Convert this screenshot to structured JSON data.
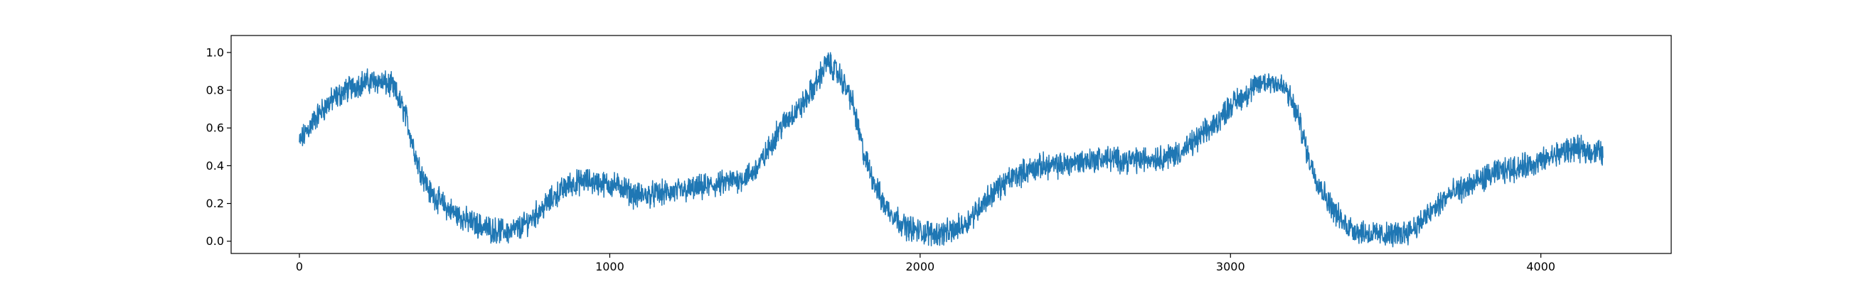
{
  "chart_data": {
    "type": "line",
    "title": "",
    "xlabel": "",
    "ylabel": "",
    "xlim": [
      -220,
      4420
    ],
    "ylim": [
      -0.065,
      1.09
    ],
    "x_ticks": [
      0,
      1000,
      2000,
      3000,
      4000
    ],
    "x_tick_labels": [
      "0",
      "1000",
      "2000",
      "3000",
      "4000"
    ],
    "y_ticks": [
      0.0,
      0.2,
      0.4,
      0.6,
      0.8,
      1.0
    ],
    "y_tick_labels": [
      "0.0",
      "0.2",
      "0.4",
      "0.6",
      "0.8",
      "1.0"
    ],
    "grid": false,
    "legend": "none",
    "line_color": "#1f77b4",
    "series": [
      {
        "x": [
          0,
          30,
          60,
          100,
          150,
          200,
          250,
          300,
          340,
          380,
          420,
          480,
          550,
          620,
          680,
          720,
          780,
          830,
          870,
          920,
          960,
          1000,
          1040,
          1080,
          1150,
          1250,
          1350,
          1420,
          1460,
          1500,
          1540,
          1580,
          1620,
          1660,
          1700,
          1740,
          1780,
          1820,
          1880,
          1950,
          2000,
          2050,
          2100,
          2150,
          2200,
          2250,
          2300,
          2350,
          2400,
          2450,
          2500,
          2550,
          2600,
          2650,
          2700,
          2750,
          2800,
          2850,
          2900,
          2950,
          3000,
          3050,
          3100,
          3140,
          3180,
          3220,
          3250,
          3280,
          3320,
          3360,
          3400,
          3450,
          3500,
          3550,
          3600,
          3650,
          3700,
          3750,
          3800,
          3850,
          3900,
          3950,
          4000,
          4050,
          4100,
          4150,
          4200
        ],
        "y": [
          0.52,
          0.6,
          0.67,
          0.74,
          0.8,
          0.84,
          0.85,
          0.82,
          0.68,
          0.42,
          0.26,
          0.17,
          0.1,
          0.06,
          0.05,
          0.08,
          0.17,
          0.25,
          0.3,
          0.32,
          0.31,
          0.3,
          0.29,
          0.24,
          0.25,
          0.27,
          0.3,
          0.33,
          0.36,
          0.45,
          0.58,
          0.66,
          0.72,
          0.82,
          0.95,
          0.88,
          0.75,
          0.45,
          0.2,
          0.08,
          0.05,
          0.04,
          0.05,
          0.1,
          0.2,
          0.28,
          0.34,
          0.38,
          0.4,
          0.4,
          0.42,
          0.43,
          0.44,
          0.43,
          0.43,
          0.44,
          0.45,
          0.48,
          0.55,
          0.62,
          0.72,
          0.78,
          0.84,
          0.85,
          0.8,
          0.65,
          0.45,
          0.32,
          0.2,
          0.1,
          0.06,
          0.04,
          0.03,
          0.04,
          0.08,
          0.16,
          0.24,
          0.28,
          0.32,
          0.36,
          0.38,
          0.4,
          0.42,
          0.46,
          0.49,
          0.48,
          0.47
        ]
      }
    ]
  }
}
